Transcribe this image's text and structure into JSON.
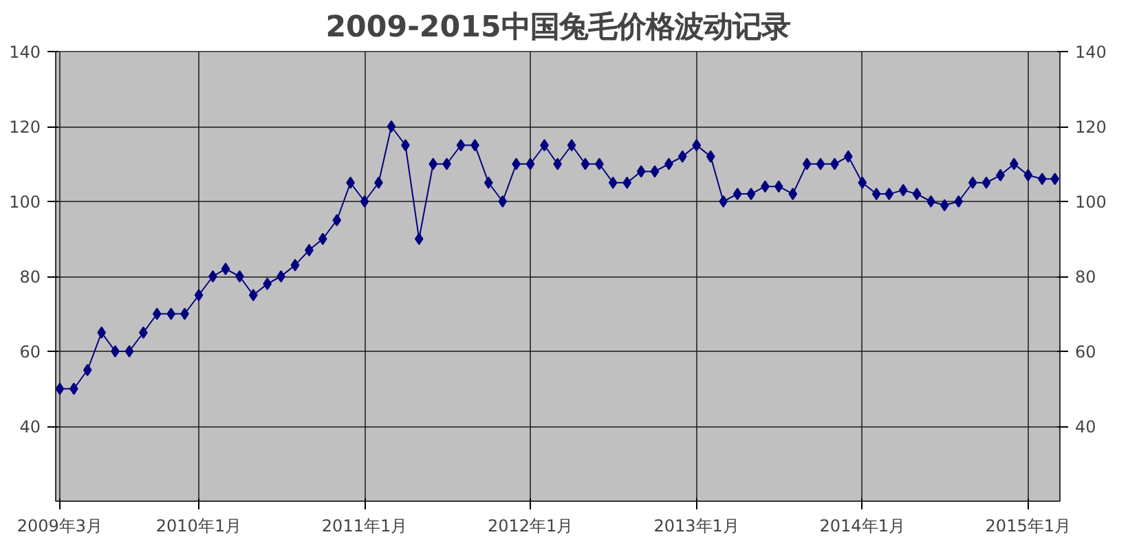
{
  "chart_data": {
    "type": "line",
    "title": "2009-2015中国兔毛价格波动记录",
    "x": [
      "2009-03",
      "2009-04",
      "2009-05",
      "2009-06",
      "2009-07",
      "2009-08",
      "2009-09",
      "2009-10",
      "2009-11",
      "2009-12",
      "2010-01",
      "2010-02",
      "2010-03",
      "2010-04",
      "2010-05",
      "2010-06",
      "2010-07",
      "2010-08",
      "2010-09",
      "2010-10",
      "2010-11",
      "2010-12",
      "2011-01",
      "2011-02",
      "2011-03",
      "2011-04",
      "2011-05",
      "2011-06",
      "2011-07",
      "2011-08",
      "2011-09",
      "2011-10",
      "2011-11",
      "2011-12",
      "2012-01",
      "2012-02",
      "2012-03",
      "2012-04",
      "2012-05",
      "2012-06",
      "2012-07",
      "2012-08",
      "2012-09",
      "2012-10",
      "2012-11",
      "2012-12",
      "2013-01",
      "2013-02",
      "2013-03",
      "2013-04",
      "2013-05",
      "2013-06",
      "2013-07",
      "2013-08",
      "2013-09",
      "2013-10",
      "2013-11",
      "2013-12",
      "2014-01",
      "2014-02",
      "2014-03",
      "2014-04",
      "2014-05",
      "2014-06",
      "2014-07",
      "2014-08",
      "2014-09",
      "2014-10",
      "2014-11",
      "2014-12",
      "2015-01",
      "2015-02",
      "2015-03"
    ],
    "series": [
      {
        "color": "#000080",
        "values": [
          50,
          50,
          55,
          65,
          60,
          60,
          65,
          70,
          70,
          70,
          75,
          80,
          82,
          80,
          75,
          78,
          80,
          83,
          87,
          90,
          95,
          105,
          100,
          105,
          120,
          115,
          90,
          110,
          110,
          115,
          115,
          105,
          100,
          110,
          110,
          115,
          110,
          115,
          110,
          110,
          105,
          105,
          108,
          108,
          110,
          112,
          115,
          112,
          100,
          102,
          102,
          104,
          104,
          102,
          110,
          110,
          110,
          112,
          105,
          102,
          102,
          103,
          102,
          100,
          99,
          100,
          105,
          105,
          107,
          110,
          107,
          106,
          106
        ]
      }
    ],
    "xlim": [
      "2009-02-20",
      "2015-03-12"
    ],
    "xticks": [
      {
        "value": "2009-03",
        "label": "2009年3月"
      },
      {
        "value": "2010-01",
        "label": "2010年1月"
      },
      {
        "value": "2011-01",
        "label": "2011年1月"
      },
      {
        "value": "2012-01",
        "label": "2012年1月"
      },
      {
        "value": "2013-01",
        "label": "2013年1月"
      },
      {
        "value": "2014-01",
        "label": "2014年1月"
      },
      {
        "value": "2015-01",
        "label": "2015年1月"
      }
    ],
    "ylim": [
      20,
      140
    ],
    "yticks": [
      40,
      60,
      80,
      100,
      120,
      140
    ],
    "y2lim": [
      20,
      140
    ],
    "y2ticks": [
      40,
      60,
      80,
      100,
      120,
      140
    ],
    "grid": true,
    "marker": "diamond",
    "line_style": "solid"
  }
}
